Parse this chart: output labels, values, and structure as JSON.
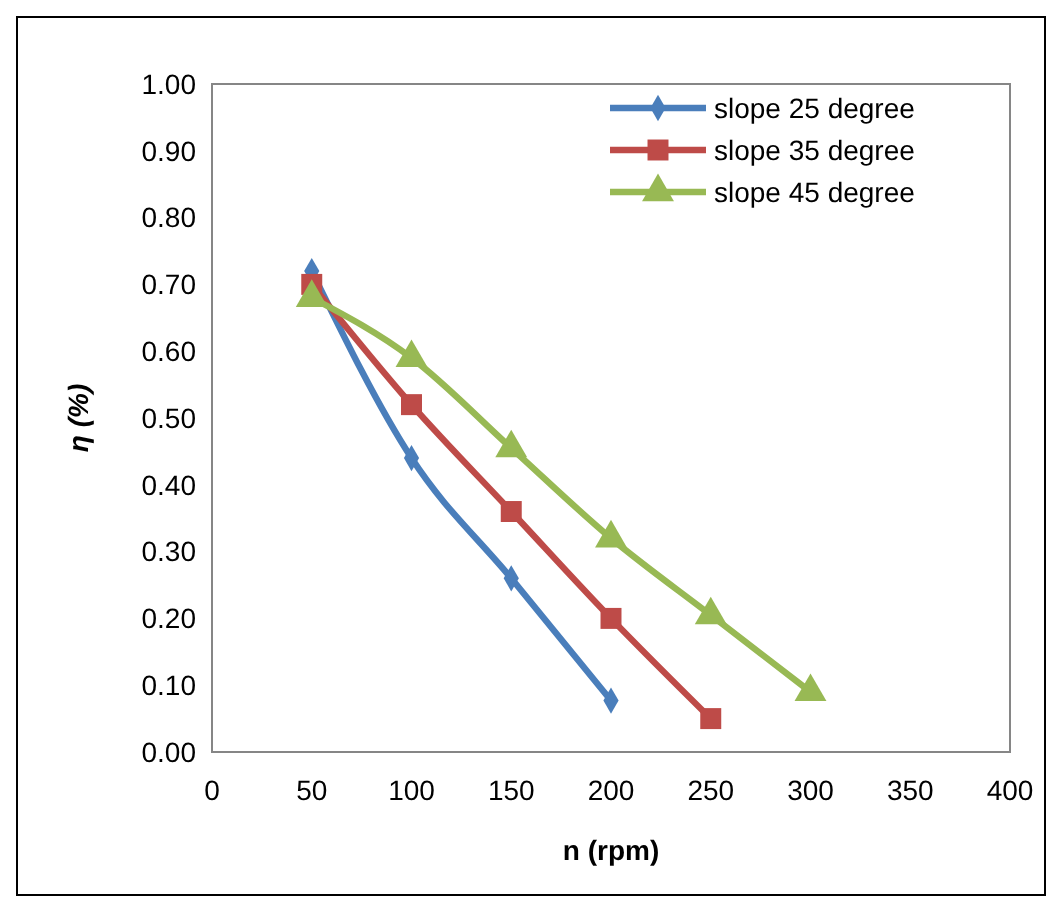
{
  "chart_data": {
    "type": "line",
    "xlabel": "n (rpm)",
    "ylabel": "η (%)",
    "x": [
      50,
      100,
      150,
      200,
      250,
      300
    ],
    "xlim": [
      0,
      400
    ],
    "xticks": [
      0,
      50,
      100,
      150,
      200,
      250,
      300,
      350,
      400
    ],
    "ylim": [
      0,
      1
    ],
    "yticks": [
      {
        "value": 0,
        "label": "0.00"
      },
      {
        "value": 0.1,
        "label": "0.10"
      },
      {
        "value": 0.2,
        "label": "0.20"
      },
      {
        "value": 0.3,
        "label": "0.30"
      },
      {
        "value": 0.4,
        "label": "0.40"
      },
      {
        "value": 0.5,
        "label": "0.50"
      },
      {
        "value": 0.6,
        "label": "0.60"
      },
      {
        "value": 0.7,
        "label": "0.70"
      },
      {
        "value": 0.8,
        "label": "0.80"
      },
      {
        "value": 0.9,
        "label": "0.90"
      },
      {
        "value": 1,
        "label": "1.00"
      }
    ],
    "legend": "top right",
    "grid": false,
    "series": [
      {
        "name": "slope 25 degree",
        "color": "#4a7ebb",
        "marker": "diamond",
        "values": [
          0.72,
          0.44,
          0.26,
          0.077,
          null,
          null
        ]
      },
      {
        "name": "slope 35 degree",
        "color": "#be4b48",
        "marker": "square",
        "values": [
          0.7,
          0.52,
          0.36,
          0.2,
          0.05,
          null
        ]
      },
      {
        "name": "slope 45 degree",
        "color": "#98b954",
        "marker": "triangle",
        "values": [
          0.68,
          0.59,
          0.455,
          0.32,
          0.205,
          0.09
        ]
      }
    ]
  }
}
